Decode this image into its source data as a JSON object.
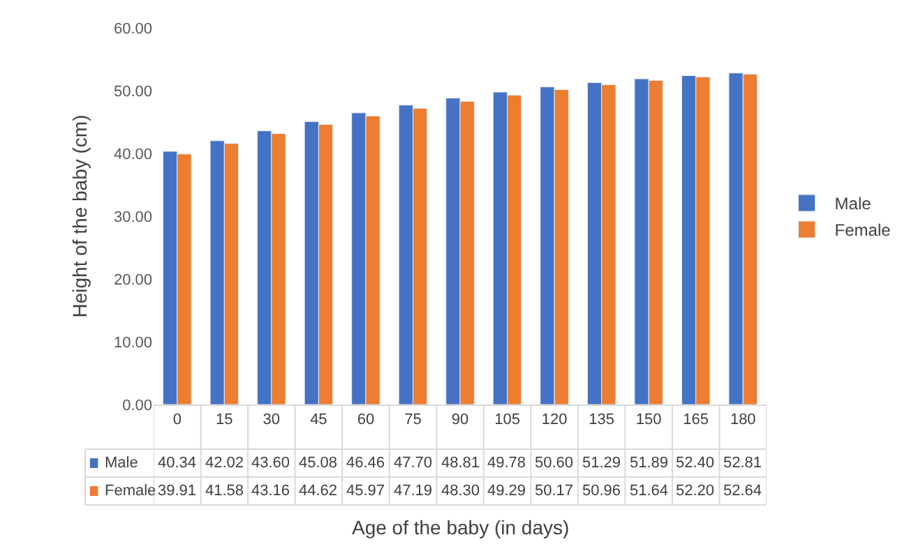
{
  "chart_data": {
    "type": "bar",
    "xlabel": "Age of the baby (in days)",
    "ylabel": "Height of the baby (cm)",
    "categories": [
      "0",
      "15",
      "30",
      "45",
      "60",
      "75",
      "90",
      "105",
      "120",
      "135",
      "150",
      "165",
      "180"
    ],
    "series": [
      {
        "name": "Male",
        "color": "#4472c4",
        "values": [
          40.34,
          42.02,
          43.6,
          45.08,
          46.46,
          47.7,
          48.81,
          49.78,
          50.6,
          51.29,
          51.89,
          52.4,
          52.81
        ],
        "value_labels": [
          "40.34",
          "42.02",
          "43.60",
          "45.08",
          "46.46",
          "47.70",
          "48.81",
          "49.78",
          "50.60",
          "51.29",
          "51.89",
          "52.40",
          "52.81"
        ]
      },
      {
        "name": "Female",
        "color": "#ed7d31",
        "values": [
          39.91,
          41.58,
          43.16,
          44.62,
          45.97,
          47.19,
          48.3,
          49.29,
          50.17,
          50.96,
          51.64,
          52.2,
          52.64
        ],
        "value_labels": [
          "39.91",
          "41.58",
          "43.16",
          "44.62",
          "45.97",
          "47.19",
          "48.30",
          "49.29",
          "50.17",
          "50.96",
          "51.64",
          "52.20",
          "52.64"
        ]
      }
    ],
    "ylim": [
      0,
      60
    ],
    "yticks": [
      {
        "value": 0,
        "label": "0.00"
      },
      {
        "value": 10,
        "label": "10.00"
      },
      {
        "value": 20,
        "label": "20.00"
      },
      {
        "value": 30,
        "label": "30.00"
      },
      {
        "value": 40,
        "label": "40.00"
      },
      {
        "value": 50,
        "label": "50.00"
      },
      {
        "value": 60,
        "label": "60.00"
      }
    ],
    "grid": false,
    "legend": "right"
  }
}
